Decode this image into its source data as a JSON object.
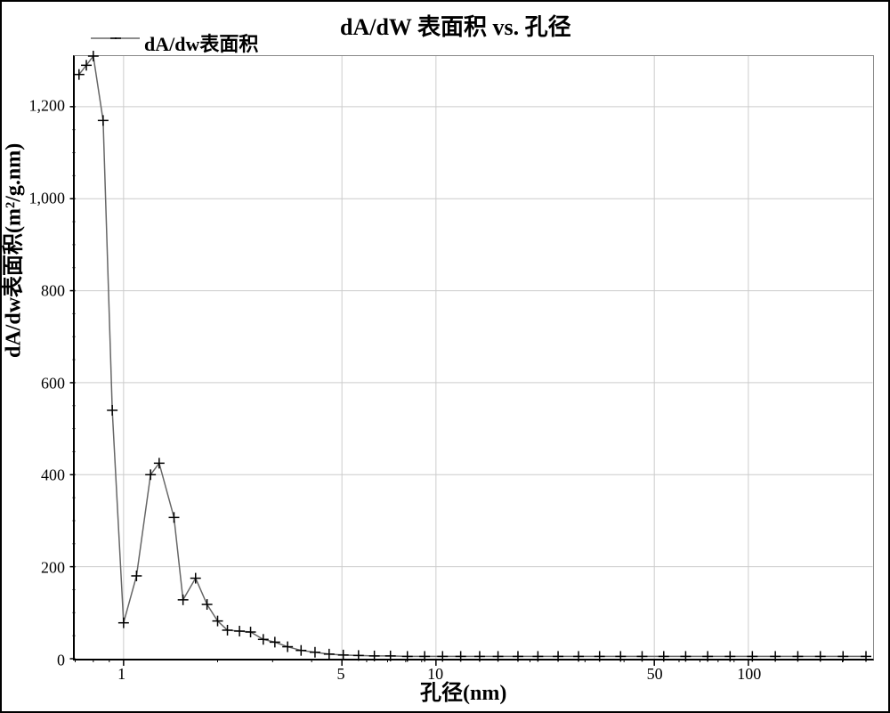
{
  "chart": {
    "type": "line",
    "title": "dA/dW 表面积 vs. 孔径",
    "legend_label": "dA/dw表面积",
    "xlabel": "孔径(nm)",
    "ylabel": "dA/dw表面积(m²/g.nm)",
    "title_fontsize": 26,
    "label_fontsize": 24,
    "tick_fontsize": 18,
    "background_color": "#ffffff",
    "grid_color": "#cccccc",
    "line_color": "#666666",
    "marker_color": "#000000",
    "axis_color": "#000000",
    "marker_style": "plus",
    "marker_size": 6,
    "line_width": 1.5,
    "xscale": "log",
    "yscale": "linear",
    "xlim": [
      0.7,
      250
    ],
    "ylim": [
      0,
      1310
    ],
    "ytick_step": 200,
    "yticks": [
      0,
      200,
      400,
      600,
      800,
      1000,
      1200
    ],
    "ytick_labels": [
      "0",
      "200",
      "400",
      "600",
      "800",
      "1,000",
      "1,200"
    ],
    "xticks_major": [
      1,
      5,
      10,
      50,
      100
    ],
    "xtick_labels": [
      "1",
      "5",
      "10",
      "50",
      "100"
    ],
    "xticks_minor_per_decade": [
      2,
      3,
      4,
      5,
      6,
      7,
      8,
      9
    ],
    "x": [
      0.72,
      0.76,
      0.8,
      0.86,
      0.92,
      1.0,
      1.1,
      1.22,
      1.3,
      1.45,
      1.55,
      1.7,
      1.85,
      2.0,
      2.15,
      2.35,
      2.55,
      2.8,
      3.05,
      3.35,
      3.7,
      4.1,
      4.55,
      5.05,
      5.65,
      6.35,
      7.15,
      8.1,
      9.2,
      10.5,
      12.0,
      13.8,
      15.8,
      18.3,
      21.2,
      24.6,
      28.6,
      33.4,
      39.0,
      45.7,
      53.6,
      63.0,
      74.1,
      87.4,
      103,
      122,
      144,
      170,
      201,
      238
    ],
    "y": [
      1270,
      1290,
      1310,
      1170,
      540,
      78,
      180,
      400,
      425,
      307,
      128,
      175,
      118,
      82,
      62,
      60,
      58,
      42,
      36,
      26,
      18,
      14,
      10,
      8,
      7,
      6,
      6,
      5,
      5,
      5,
      5,
      5,
      5,
      5,
      5,
      5,
      5,
      5,
      5,
      5,
      5,
      5,
      5,
      5,
      5,
      5,
      5,
      5,
      5,
      5
    ]
  }
}
